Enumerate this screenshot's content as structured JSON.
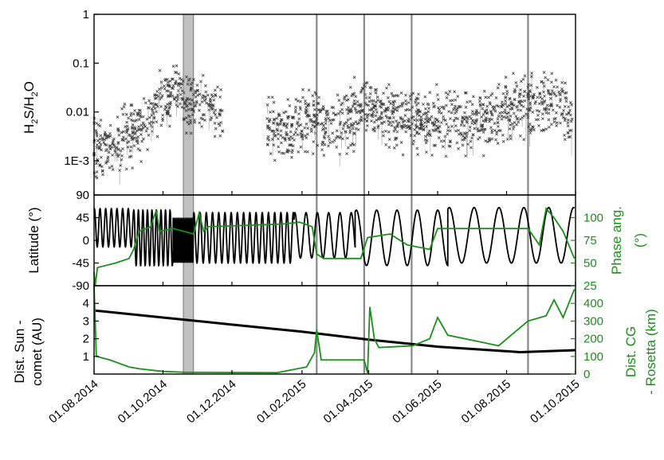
{
  "colors": {
    "black_series": "#000000",
    "green_series": "#1a8f1a",
    "band_fill": "#c0c0c0",
    "marker_lines": "#888888"
  },
  "chart_data": [
    {
      "type": "scatter",
      "panel": "top",
      "ylabel": "H2S/H2O",
      "ylabel_main": "H",
      "ylabel_sub1": "2",
      "ylabel_mid": "S/H",
      "ylabel_sub2": "2",
      "ylabel_end": "O",
      "yscale": "log",
      "ylim": [
        0.0002,
        1
      ],
      "yticks": [
        {
          "value": 1,
          "label": "1"
        },
        {
          "value": 0.1,
          "label": "0.1"
        },
        {
          "value": 0.01,
          "label": "0.01"
        },
        {
          "value": 0.001,
          "label": "1E-3"
        }
      ],
      "series": [
        {
          "color": "#555555",
          "trend": [
            {
              "date": "2014-08-01",
              "value": 0.0015
            },
            {
              "date": "2014-08-20",
              "value": 0.0025
            },
            {
              "date": "2014-09-10",
              "value": 0.005
            },
            {
              "date": "2014-09-25",
              "value": 0.012
            },
            {
              "date": "2014-10-10",
              "value": 0.025
            },
            {
              "date": "2014-10-25",
              "value": 0.02
            },
            {
              "date": "2014-11-10",
              "value": 0.012
            },
            {
              "date": "2014-11-22",
              "value": 0.008
            },
            {
              "date": "2015-01-05",
              "value": 0.004
            },
            {
              "date": "2015-01-25",
              "value": 0.006
            },
            {
              "date": "2015-02-15",
              "value": 0.007
            },
            {
              "date": "2015-03-05",
              "value": 0.005
            },
            {
              "date": "2015-03-31",
              "value": 0.012
            },
            {
              "date": "2015-04-20",
              "value": 0.009
            },
            {
              "date": "2015-05-15",
              "value": 0.006
            },
            {
              "date": "2015-06-10",
              "value": 0.007
            },
            {
              "date": "2015-07-01",
              "value": 0.006
            },
            {
              "date": "2015-07-25",
              "value": 0.009
            },
            {
              "date": "2015-08-15",
              "value": 0.013
            },
            {
              "date": "2015-09-01",
              "value": 0.018
            },
            {
              "date": "2015-09-20",
              "value": 0.012
            },
            {
              "date": "2015-09-28",
              "value": 0.006
            }
          ],
          "gaps": [
            [
              "2014-11-23",
              "2015-01-01"
            ]
          ]
        }
      ]
    },
    {
      "type": "line",
      "panel": "middle",
      "ylabel": "Latitude (°)",
      "ylim": [
        -90,
        90
      ],
      "yticks": [
        {
          "value": 90,
          "label": "90"
        },
        {
          "value": 45,
          "label": "45"
        },
        {
          "value": 0,
          "label": "0"
        },
        {
          "value": -45,
          "label": "-45"
        },
        {
          "value": -90,
          "label": "-90"
        }
      ],
      "y2label_line1": "Phase ang.",
      "y2label_line2": "(°)",
      "y2lim": [
        25,
        125
      ],
      "y2ticks": [
        {
          "value": 100,
          "label": "100"
        },
        {
          "value": 75,
          "label": "75"
        },
        {
          "value": 50,
          "label": "50"
        },
        {
          "value": 25,
          "label": "25"
        }
      ],
      "series": [
        {
          "axis": "left",
          "color": "#000000",
          "segments": [
            {
              "start": "2014-08-01",
              "end": "2014-09-05",
              "period_days": 5,
              "amp": 38,
              "center": 25
            },
            {
              "start": "2014-09-05",
              "end": "2014-10-10",
              "period_days": 4,
              "amp": 55,
              "center": 5
            },
            {
              "start": "2014-10-10",
              "end": "2014-10-28",
              "period_days": 1.5,
              "amp": 45,
              "center": 0
            },
            {
              "start": "2014-10-28",
              "end": "2015-01-25",
              "period_days": 5.5,
              "amp": 50,
              "center": 5
            },
            {
              "start": "2015-01-25",
              "end": "2015-03-20",
              "period_days": 10,
              "amp": 45,
              "center": 10
            },
            {
              "start": "2015-03-20",
              "end": "2015-06-10",
              "period_days": 18,
              "amp": 55,
              "center": 5
            },
            {
              "start": "2015-06-10",
              "end": "2015-09-30",
              "period_days": 22,
              "amp": 55,
              "center": 10
            }
          ]
        },
        {
          "axis": "right",
          "color": "#1a8f1a",
          "points": [
            {
              "date": "2014-08-01",
              "value": 40
            },
            {
              "date": "2014-08-02",
              "value": 25
            },
            {
              "date": "2014-08-04",
              "value": 45
            },
            {
              "date": "2014-08-20",
              "value": 50
            },
            {
              "date": "2014-09-01",
              "value": 55
            },
            {
              "date": "2014-09-05",
              "value": 65
            },
            {
              "date": "2014-09-10",
              "value": 85
            },
            {
              "date": "2014-09-20",
              "value": 90
            },
            {
              "date": "2014-09-25",
              "value": 108
            },
            {
              "date": "2014-09-28",
              "value": 85
            },
            {
              "date": "2014-10-10",
              "value": 88
            },
            {
              "date": "2014-10-28",
              "value": 82
            },
            {
              "date": "2014-11-02",
              "value": 105
            },
            {
              "date": "2014-11-06",
              "value": 85
            },
            {
              "date": "2014-11-10",
              "value": 90
            },
            {
              "date": "2015-01-15",
              "value": 93
            },
            {
              "date": "2015-01-30",
              "value": 95
            },
            {
              "date": "2015-02-10",
              "value": 90
            },
            {
              "date": "2015-02-14",
              "value": 60
            },
            {
              "date": "2015-02-20",
              "value": 55
            },
            {
              "date": "2015-03-25",
              "value": 55
            },
            {
              "date": "2015-03-31",
              "value": 78
            },
            {
              "date": "2015-04-20",
              "value": 82
            },
            {
              "date": "2015-05-05",
              "value": 70
            },
            {
              "date": "2015-05-25",
              "value": 65
            },
            {
              "date": "2015-06-01",
              "value": 88
            },
            {
              "date": "2015-08-20",
              "value": 88
            },
            {
              "date": "2015-08-30",
              "value": 70
            },
            {
              "date": "2015-09-05",
              "value": 110
            },
            {
              "date": "2015-09-12",
              "value": 100
            },
            {
              "date": "2015-09-20",
              "value": 85
            },
            {
              "date": "2015-09-30",
              "value": 55
            }
          ]
        }
      ]
    },
    {
      "type": "line",
      "panel": "bottom",
      "ylabel_line1": "Dist. Sun -",
      "ylabel_line2": "comet (AU)",
      "ylim": [
        0,
        5
      ],
      "yticks": [
        {
          "value": 4,
          "label": "4"
        },
        {
          "value": 3,
          "label": "3"
        },
        {
          "value": 2,
          "label": "2"
        },
        {
          "value": 1,
          "label": "1"
        }
      ],
      "y2label_line1": "Dist. CG",
      "y2label_line2": "- Rosetta (km)",
      "y2lim": [
        0,
        500
      ],
      "y2ticks": [
        {
          "value": 400,
          "label": "400"
        },
        {
          "value": 300,
          "label": "300"
        },
        {
          "value": 200,
          "label": "200"
        },
        {
          "value": 100,
          "label": "100"
        },
        {
          "value": 0,
          "label": "0"
        }
      ],
      "series": [
        {
          "axis": "left",
          "color": "#000000",
          "points": [
            {
              "date": "2014-08-01",
              "value": 3.6
            },
            {
              "date": "2014-10-01",
              "value": 3.2
            },
            {
              "date": "2014-12-01",
              "value": 2.8
            },
            {
              "date": "2015-02-01",
              "value": 2.4
            },
            {
              "date": "2015-04-01",
              "value": 1.95
            },
            {
              "date": "2015-06-01",
              "value": 1.55
            },
            {
              "date": "2015-08-13",
              "value": 1.24
            },
            {
              "date": "2015-10-01",
              "value": 1.35
            }
          ]
        },
        {
          "axis": "right",
          "color": "#1a8f1a",
          "points": [
            {
              "date": "2014-08-01",
              "value": 500
            },
            {
              "date": "2014-08-03",
              "value": 100
            },
            {
              "date": "2014-08-15",
              "value": 80
            },
            {
              "date": "2014-09-01",
              "value": 40
            },
            {
              "date": "2014-09-10",
              "value": 30
            },
            {
              "date": "2014-10-01",
              "value": 15
            },
            {
              "date": "2014-10-20",
              "value": 10
            },
            {
              "date": "2015-01-10",
              "value": 8
            },
            {
              "date": "2015-02-05",
              "value": 40
            },
            {
              "date": "2015-02-12",
              "value": 120
            },
            {
              "date": "2015-02-14",
              "value": 250
            },
            {
              "date": "2015-02-18",
              "value": 80
            },
            {
              "date": "2015-03-28",
              "value": 80
            },
            {
              "date": "2015-03-31",
              "value": 5
            },
            {
              "date": "2015-04-02",
              "value": 380
            },
            {
              "date": "2015-04-06",
              "value": 200
            },
            {
              "date": "2015-04-10",
              "value": 150
            },
            {
              "date": "2015-05-10",
              "value": 160
            },
            {
              "date": "2015-05-25",
              "value": 200
            },
            {
              "date": "2015-06-01",
              "value": 320
            },
            {
              "date": "2015-06-10",
              "value": 220
            },
            {
              "date": "2015-07-10",
              "value": 180
            },
            {
              "date": "2015-07-25",
              "value": 160
            },
            {
              "date": "2015-08-05",
              "value": 220
            },
            {
              "date": "2015-08-20",
              "value": 300
            },
            {
              "date": "2015-09-05",
              "value": 330
            },
            {
              "date": "2015-09-12",
              "value": 420
            },
            {
              "date": "2015-09-20",
              "value": 320
            },
            {
              "date": "2015-09-30",
              "value": 480
            }
          ]
        }
      ]
    }
  ],
  "xaxis": {
    "type": "date",
    "xlim": [
      "2014-08-01",
      "2015-10-01"
    ],
    "ticks": [
      {
        "date": "2014-08-01",
        "label": "01.08.2014"
      },
      {
        "date": "2014-10-01",
        "label": "01.10.2014"
      },
      {
        "date": "2014-12-01",
        "label": "01.12.2014"
      },
      {
        "date": "2015-02-01",
        "label": "01.02.2015"
      },
      {
        "date": "2015-04-01",
        "label": "01.04.2015"
      },
      {
        "date": "2015-06-01",
        "label": "01.06.2015"
      },
      {
        "date": "2015-08-01",
        "label": "01.08.2015"
      },
      {
        "date": "2015-10-01",
        "label": "01.10.2015"
      }
    ]
  },
  "shaded_band": {
    "start": "2014-10-19",
    "end": "2014-10-28"
  },
  "vertical_markers": [
    "2015-02-14",
    "2015-03-28",
    "2015-05-09",
    "2015-08-20"
  ]
}
